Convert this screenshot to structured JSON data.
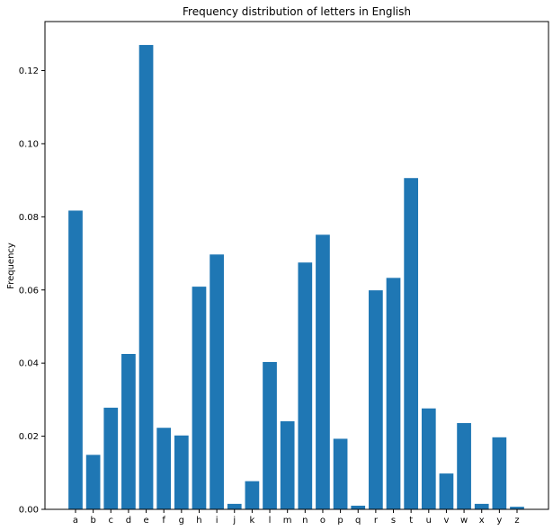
{
  "chart_data": {
    "type": "bar",
    "title": "Frequency distribution of letters in English",
    "xlabel": "",
    "ylabel": "Frequency",
    "categories": [
      "a",
      "b",
      "c",
      "d",
      "e",
      "f",
      "g",
      "h",
      "i",
      "j",
      "k",
      "l",
      "m",
      "n",
      "o",
      "p",
      "q",
      "r",
      "s",
      "t",
      "u",
      "v",
      "w",
      "x",
      "y",
      "z"
    ],
    "values": [
      0.0817,
      0.0149,
      0.0278,
      0.0425,
      0.127,
      0.0223,
      0.0202,
      0.0609,
      0.0697,
      0.0015,
      0.0077,
      0.0403,
      0.0241,
      0.0675,
      0.0751,
      0.0193,
      0.001,
      0.0599,
      0.0633,
      0.0906,
      0.0276,
      0.0098,
      0.0236,
      0.0015,
      0.0197,
      0.0007
    ],
    "ylim": [
      0,
      0.1334
    ],
    "yticks": [
      "0.00",
      "0.02",
      "0.04",
      "0.06",
      "0.08",
      "0.10",
      "0.12"
    ],
    "bar_color": "#1f77b4",
    "grid": false,
    "legend": "none"
  }
}
